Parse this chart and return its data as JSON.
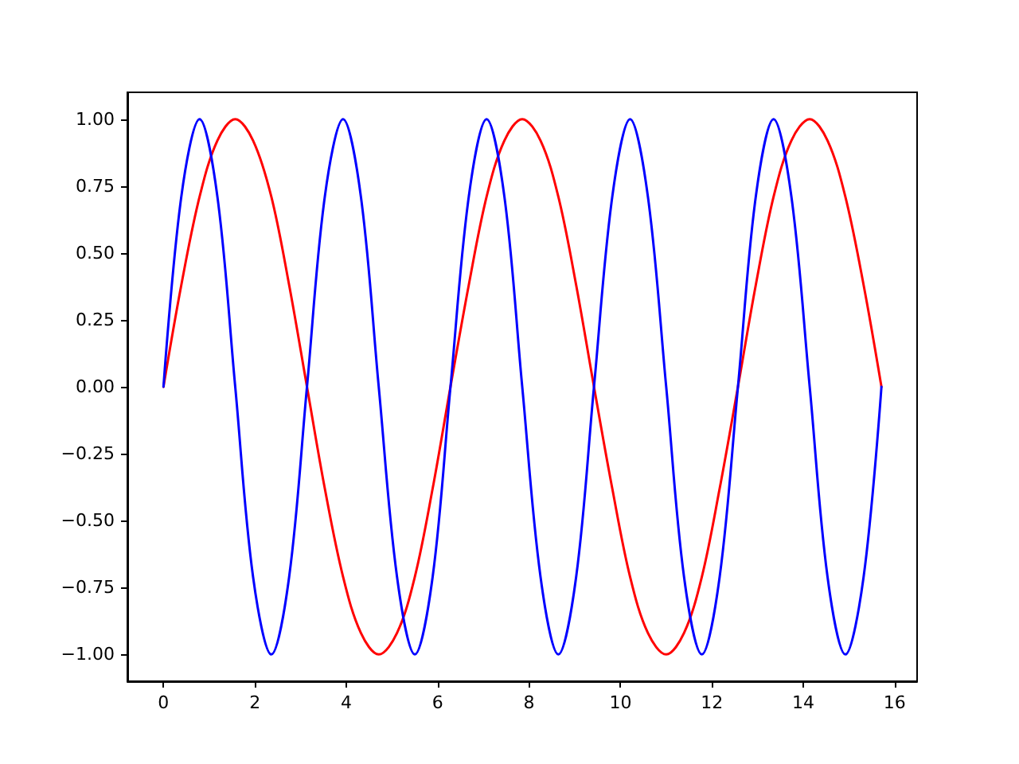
{
  "chart_data": {
    "type": "line",
    "x": [
      0,
      0.39,
      0.79,
      1.18,
      1.57,
      1.96,
      2.36,
      2.75,
      3.14,
      3.53,
      3.93,
      4.32,
      4.71,
      5.11,
      5.5,
      5.89,
      6.28,
      6.68,
      7.07,
      7.46,
      7.85,
      8.25,
      8.64,
      9.03,
      9.42,
      9.82,
      10.21,
      10.6,
      11,
      11.39,
      11.78,
      12.17,
      12.57,
      12.96,
      13.35,
      13.74,
      14.14,
      14.53,
      14.92,
      15.32,
      15.71
    ],
    "series": [
      {
        "color": "#ff0000",
        "values": [
          0,
          0.38,
          0.71,
          0.92,
          1,
          0.92,
          0.71,
          0.38,
          0,
          -0.38,
          -0.71,
          -0.92,
          -1,
          -0.92,
          -0.71,
          -0.38,
          0,
          0.38,
          0.71,
          0.92,
          1,
          0.92,
          0.71,
          0.38,
          0,
          -0.38,
          -0.71,
          -0.92,
          -1,
          -0.92,
          -0.71,
          -0.38,
          0,
          0.38,
          0.71,
          0.92,
          1,
          0.92,
          0.71,
          0.38,
          0
        ]
      },
      {
        "color": "#0000ff",
        "values": [
          0,
          0.71,
          1,
          0.71,
          0,
          -0.71,
          -1,
          -0.71,
          0,
          0.71,
          1,
          0.71,
          0,
          -0.71,
          -1,
          -0.71,
          0,
          0.71,
          1,
          0.71,
          0,
          -0.71,
          -1,
          -0.71,
          0,
          0.71,
          1,
          0.71,
          0,
          -0.71,
          -1,
          -0.71,
          0,
          0.71,
          1,
          0.71,
          0,
          -0.71,
          -1,
          -0.71,
          0
        ]
      }
    ],
    "xlim": [
      -0.79,
      16.49
    ],
    "xticks": [
      0,
      2,
      4,
      6,
      8,
      10,
      12,
      14,
      16
    ],
    "ylim": [
      -1.1,
      1.1
    ],
    "yticks": [
      {
        "value": -1,
        "label": "−1.00"
      },
      {
        "value": -0.75,
        "label": "−0.75"
      },
      {
        "value": -0.5,
        "label": "−0.50"
      },
      {
        "value": -0.25,
        "label": "−0.25"
      },
      {
        "value": 0,
        "label": "0.00"
      },
      {
        "value": 0.25,
        "label": "0.25"
      },
      {
        "value": 0.5,
        "label": "0.50"
      },
      {
        "value": 0.75,
        "label": "0.75"
      },
      {
        "value": 1,
        "label": "1.00"
      }
    ],
    "grid": false,
    "marker": "none",
    "line_style": "solid"
  }
}
